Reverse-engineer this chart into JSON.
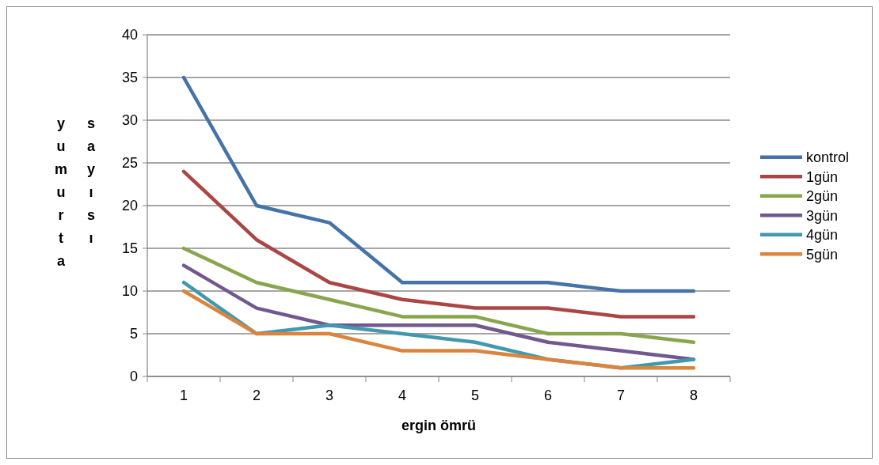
{
  "chart_data": {
    "type": "line",
    "xlabel": "ergin ömrü",
    "ylabel": "yumurta sayısı",
    "categories": [
      "1",
      "2",
      "3",
      "4",
      "5",
      "6",
      "7",
      "8"
    ],
    "ylim": [
      0,
      40
    ],
    "yticks": [
      0,
      5,
      10,
      15,
      20,
      25,
      30,
      35,
      40
    ],
    "grid": "y",
    "legend": "right",
    "marker": "none",
    "line_style": "solid",
    "series": [
      {
        "name": "kontrol",
        "color": "#4572a7",
        "values": [
          35,
          20,
          18,
          11,
          11,
          11,
          10,
          10
        ]
      },
      {
        "name": "1gün",
        "color": "#aa4643",
        "values": [
          24,
          16,
          11,
          9,
          8,
          8,
          7,
          7
        ]
      },
      {
        "name": "2gün",
        "color": "#89a54e",
        "values": [
          15,
          11,
          9,
          7,
          7,
          5,
          5,
          4
        ]
      },
      {
        "name": "3gün",
        "color": "#71588f",
        "values": [
          13,
          8,
          6,
          6,
          6,
          4,
          3,
          2
        ]
      },
      {
        "name": "4gün",
        "color": "#4198af",
        "values": [
          11,
          5,
          6,
          5,
          4,
          2,
          1,
          2
        ]
      },
      {
        "name": "5gün",
        "color": "#db843d",
        "values": [
          10,
          5,
          5,
          3,
          3,
          2,
          1,
          1
        ]
      }
    ]
  }
}
